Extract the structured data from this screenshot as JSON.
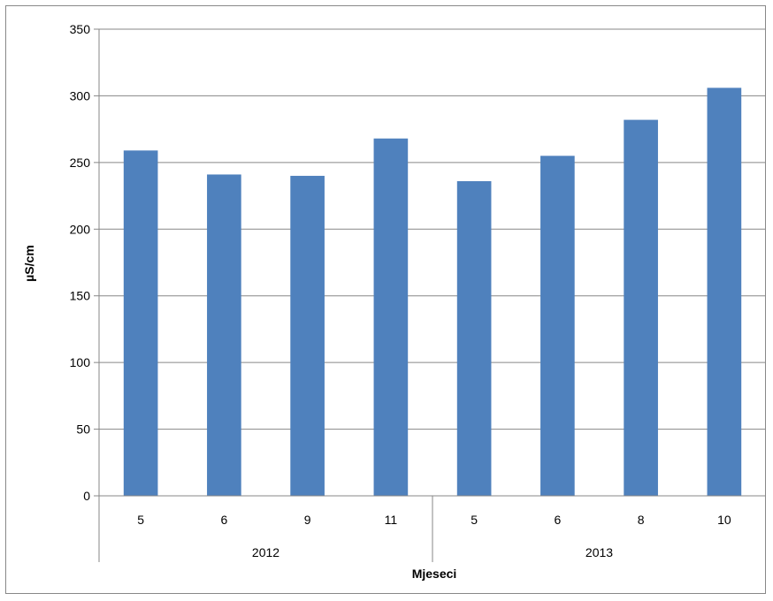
{
  "chart_data": {
    "type": "bar",
    "title": "",
    "ylabel": "µS/cm",
    "xlabel": "Mjeseci",
    "ylim": [
      0,
      350
    ],
    "yticks": [
      0,
      50,
      100,
      150,
      200,
      250,
      300,
      350
    ],
    "grid": true,
    "legend": "none",
    "bar_color": "#4F81BD",
    "groups": [
      {
        "label": "2012",
        "categories": [
          "5",
          "6",
          "9",
          "11"
        ]
      },
      {
        "label": "2013",
        "categories": [
          "5",
          "6",
          "8",
          "10"
        ]
      }
    ],
    "categories": [
      "5",
      "6",
      "9",
      "11",
      "5",
      "6",
      "8",
      "10"
    ],
    "values": [
      259,
      241,
      240,
      268,
      236,
      255,
      282,
      306
    ]
  }
}
